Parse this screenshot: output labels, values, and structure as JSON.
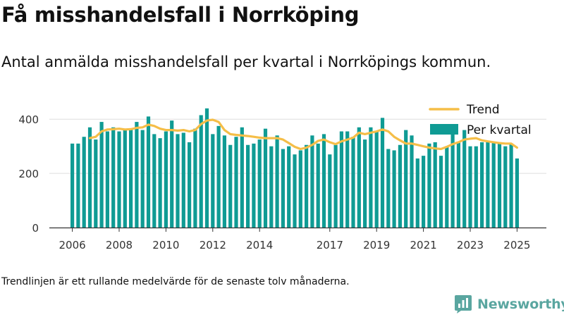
{
  "header": {
    "title": "Få misshandelsfall i Norrköping",
    "subtitle": "Antal anmälda misshandelsfall per kvartal i Norrköpings kommun."
  },
  "footer": {
    "note": "Trendlinjen är ett rullande medelvärde för de senaste tolv månaderna.",
    "brand": "Newsworthy"
  },
  "colors": {
    "bars": "#0f9b94",
    "trend": "#f5be48",
    "grid": "#dddddd",
    "axis": "#333333",
    "brand": "#5aa6a0"
  },
  "chart_data": {
    "type": "bar",
    "x_start": "2006-Q1",
    "frequency": "quarterly",
    "ylim": [
      0,
      450
    ],
    "yticks": [
      0,
      200,
      400
    ],
    "xticks": [
      "2006",
      "2008",
      "2010",
      "2012",
      "2014",
      "2017",
      "2019",
      "2021",
      "2023",
      "2025"
    ],
    "grid": true,
    "legend_position": "top-right",
    "series": [
      {
        "name": "Per kvartal",
        "kind": "bar",
        "values": [
          310,
          310,
          335,
          370,
          325,
          390,
          355,
          370,
          355,
          360,
          365,
          390,
          360,
          410,
          345,
          330,
          355,
          395,
          345,
          350,
          315,
          365,
          415,
          440,
          345,
          375,
          340,
          305,
          335,
          370,
          305,
          310,
          325,
          365,
          300,
          340,
          290,
          300,
          270,
          285,
          305,
          340,
          310,
          345,
          270,
          305,
          355,
          355,
          335,
          370,
          325,
          370,
          355,
          405,
          290,
          285,
          305,
          360,
          340,
          255,
          265,
          310,
          315,
          265,
          300,
          365,
          315,
          360,
          300,
          300,
          315,
          315,
          315,
          315,
          300,
          310,
          255
        ]
      },
      {
        "name": "Trend",
        "kind": "line",
        "values": [
          null,
          null,
          null,
          330,
          335,
          355,
          362,
          363,
          365,
          362,
          363,
          368,
          370,
          380,
          375,
          365,
          360,
          360,
          358,
          360,
          355,
          360,
          382,
          395,
          398,
          390,
          360,
          345,
          342,
          340,
          338,
          335,
          332,
          330,
          330,
          330,
          325,
          312,
          298,
          290,
          295,
          305,
          320,
          325,
          315,
          308,
          318,
          325,
          332,
          350,
          345,
          350,
          355,
          362,
          355,
          335,
          322,
          310,
          310,
          305,
          300,
          295,
          292,
          290,
          298,
          308,
          315,
          325,
          328,
          330,
          322,
          318,
          315,
          312,
          310,
          310,
          295
        ]
      }
    ]
  }
}
